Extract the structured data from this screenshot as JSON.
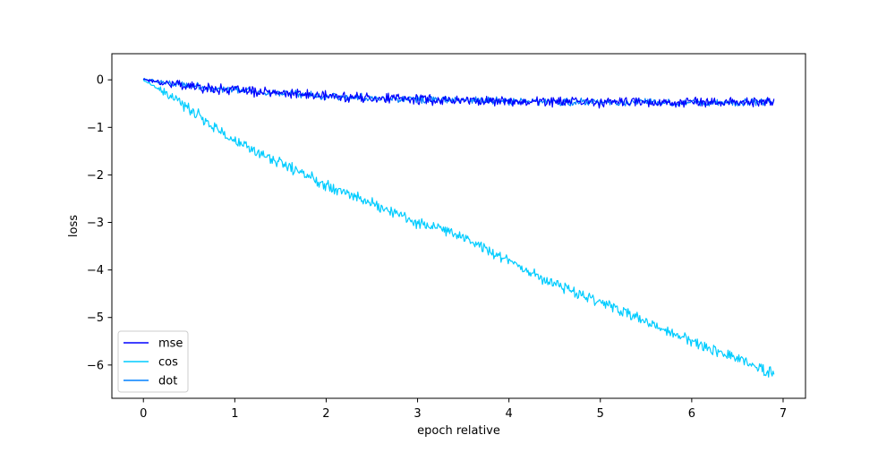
{
  "chart_data": {
    "type": "line",
    "title": "",
    "xlabel": "epoch relative",
    "ylabel": "loss",
    "xlim": [
      -0.345,
      7.245
    ],
    "ylim": [
      -6.7,
      0.55
    ],
    "xticks": [
      0,
      1,
      2,
      3,
      4,
      5,
      6,
      7
    ],
    "xtick_labels": [
      "0",
      "1",
      "2",
      "3",
      "4",
      "5",
      "6",
      "7"
    ],
    "yticks": [
      0,
      -1,
      -2,
      -3,
      -4,
      -5,
      -6
    ],
    "ytick_labels": [
      "0",
      "−1",
      "−2",
      "−3",
      "−4",
      "−5",
      "−6"
    ],
    "grid": false,
    "legend_position": "lower-left",
    "series": [
      {
        "name": "mse",
        "color": "#0000ff",
        "x": [
          0,
          0.1,
          0.2,
          0.3,
          0.4,
          0.5,
          0.6,
          0.7,
          0.8,
          0.9,
          1.0,
          1.25,
          1.5,
          1.75,
          2.0,
          2.5,
          3.0,
          3.5,
          4.0,
          4.5,
          5.0,
          5.5,
          6.0,
          6.5,
          6.9
        ],
        "y": [
          0.02,
          -0.02,
          -0.05,
          -0.08,
          -0.1,
          -0.13,
          -0.15,
          -0.17,
          -0.19,
          -0.2,
          -0.22,
          -0.25,
          -0.28,
          -0.31,
          -0.34,
          -0.38,
          -0.41,
          -0.43,
          -0.45,
          -0.46,
          -0.47,
          -0.47,
          -0.47,
          -0.47,
          -0.47
        ],
        "noise": 0.08
      },
      {
        "name": "cos",
        "color": "#00ccff",
        "x": [
          0,
          0.5,
          1.0,
          1.5,
          2.0,
          2.5,
          3.0,
          3.5,
          4.0,
          4.5,
          5.0,
          5.5,
          6.0,
          6.5,
          6.9
        ],
        "y": [
          0.0,
          -0.6,
          -1.3,
          -1.75,
          -2.2,
          -2.6,
          -3.0,
          -3.3,
          -3.8,
          -4.3,
          -4.65,
          -5.1,
          -5.5,
          -5.85,
          -6.2
        ],
        "noise": 0.09
      },
      {
        "name": "dot",
        "color": "#0080ff",
        "x": [
          0,
          0.1,
          0.2,
          0.3,
          0.4,
          0.5,
          0.6,
          0.7,
          0.8,
          0.9,
          1.0,
          1.25,
          1.5,
          1.75,
          2.0,
          2.5,
          3.0,
          3.5,
          4.0,
          4.5,
          5.0,
          5.5,
          6.0,
          6.5,
          6.9
        ],
        "y": [
          0.02,
          -0.02,
          -0.05,
          -0.08,
          -0.1,
          -0.13,
          -0.15,
          -0.17,
          -0.19,
          -0.2,
          -0.22,
          -0.25,
          -0.28,
          -0.31,
          -0.34,
          -0.38,
          -0.41,
          -0.43,
          -0.45,
          -0.46,
          -0.47,
          -0.47,
          -0.47,
          -0.47,
          -0.47
        ],
        "noise": 0.06
      }
    ]
  }
}
